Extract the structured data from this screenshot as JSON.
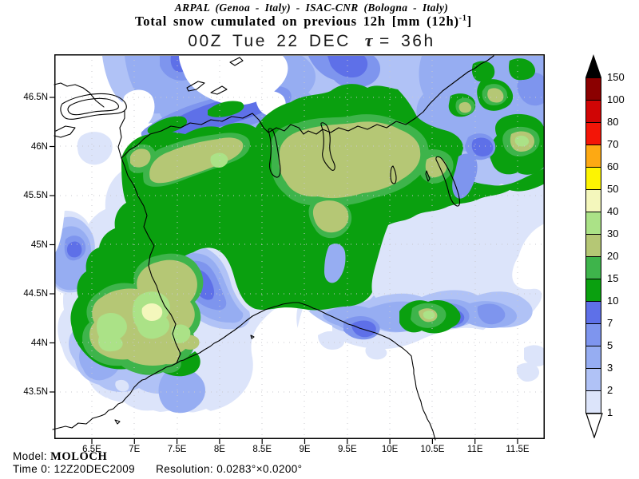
{
  "header": {
    "credit": "ARPAL (Genoa - Italy)  -  ISAC-CNR (Bologna - Italy)",
    "title_pre": "Total snow cumulated on previous 12h [mm (12h)",
    "title_sup": "-1",
    "title_post": "]",
    "datetime": "00Z Tue 22 DEC",
    "tau": "τ",
    "tau_value": "= 36h"
  },
  "map": {
    "y_ticks": [
      "46.5N",
      "46N",
      "45.5N",
      "45N",
      "44.5N",
      "44N",
      "43.5N"
    ],
    "x_ticks": [
      "6.5E",
      "7E",
      "7.5E",
      "8E",
      "8.5E",
      "9E",
      "9.5E",
      "10E",
      "10.5E",
      "11E",
      "11.5E"
    ]
  },
  "colorbar": {
    "labels": [
      "150",
      "100",
      "80",
      "70",
      "60",
      "50",
      "40",
      "30",
      "20",
      "15",
      "10",
      "7",
      "5",
      "3",
      "2",
      "1"
    ],
    "colors_top_to_bottom": [
      "#8b0000",
      "#d00505",
      "#f31507",
      "#fda913",
      "#fdf402",
      "#f4f7bc",
      "#abe287",
      "#b5c775",
      "#3eb44b",
      "#0aa00f",
      "#5e70e8",
      "#7e95ee",
      "#96adf2",
      "#b0c2f6",
      "#dce4fa"
    ],
    "over_color": "#000000",
    "under_color": "#ffffff"
  },
  "footer": {
    "model_label": "Model:",
    "model_name": "MOLOCH",
    "time_label": "Time 0:",
    "time_value": "12Z20DEC2009",
    "resolution_label": "Resolution:",
    "resolution_value": "0.0283°×0.0200°"
  },
  "chart_data": {
    "type": "filled_contour_map",
    "title": "Total snow cumulated on previous 12h [mm (12h)-1]",
    "institutions": "ARPAL (Genoa - Italy) - ISAC-CNR (Bologna - Italy)",
    "valid_time": "00Z Tue 22 DEC",
    "forecast_lead_hours": 36,
    "model": "MOLOCH",
    "initialization": "12Z20DEC2009",
    "grid_resolution": "0.0283°×0.0200°",
    "units": "mm per 12h",
    "contour_levels_mm": [
      1,
      2,
      3,
      5,
      7,
      10,
      15,
      20,
      30,
      40,
      50,
      60,
      70,
      80,
      100,
      150
    ],
    "level_colors_low_to_high": [
      "#dce4fa",
      "#b0c2f6",
      "#96adf2",
      "#7e95ee",
      "#5e70e8",
      "#0aa00f",
      "#3eb44b",
      "#b5c775",
      "#abe287",
      "#f4f7bc",
      "#fdf402",
      "#fda913",
      "#f31507",
      "#d00505",
      "#8b0000"
    ],
    "x_axis_ticks_lon": [
      6.5,
      7,
      7.5,
      8,
      8.5,
      9,
      9.5,
      10,
      10.5,
      11,
      11.5
    ],
    "y_axis_ticks_lat": [
      46.5,
      46,
      45.5,
      45,
      44.5,
      44,
      43.5
    ],
    "region": "Northwestern Italy / Alps / Ligurian Sea",
    "max_plotted_band_mm": "30-40 (southwest Piedmont cores)",
    "description": "Broad 10-30 mm snow area over the Alpine arc and Piedmont, 30-40+ mm cores in SW Piedmont and Maritime Alps, 1-10 mm halo around, secondary 10-30 mm band along the Tuscan-Emilian Apennines, mostly snow-free Po valley edge, Ligurian Sea and far southeast."
  }
}
